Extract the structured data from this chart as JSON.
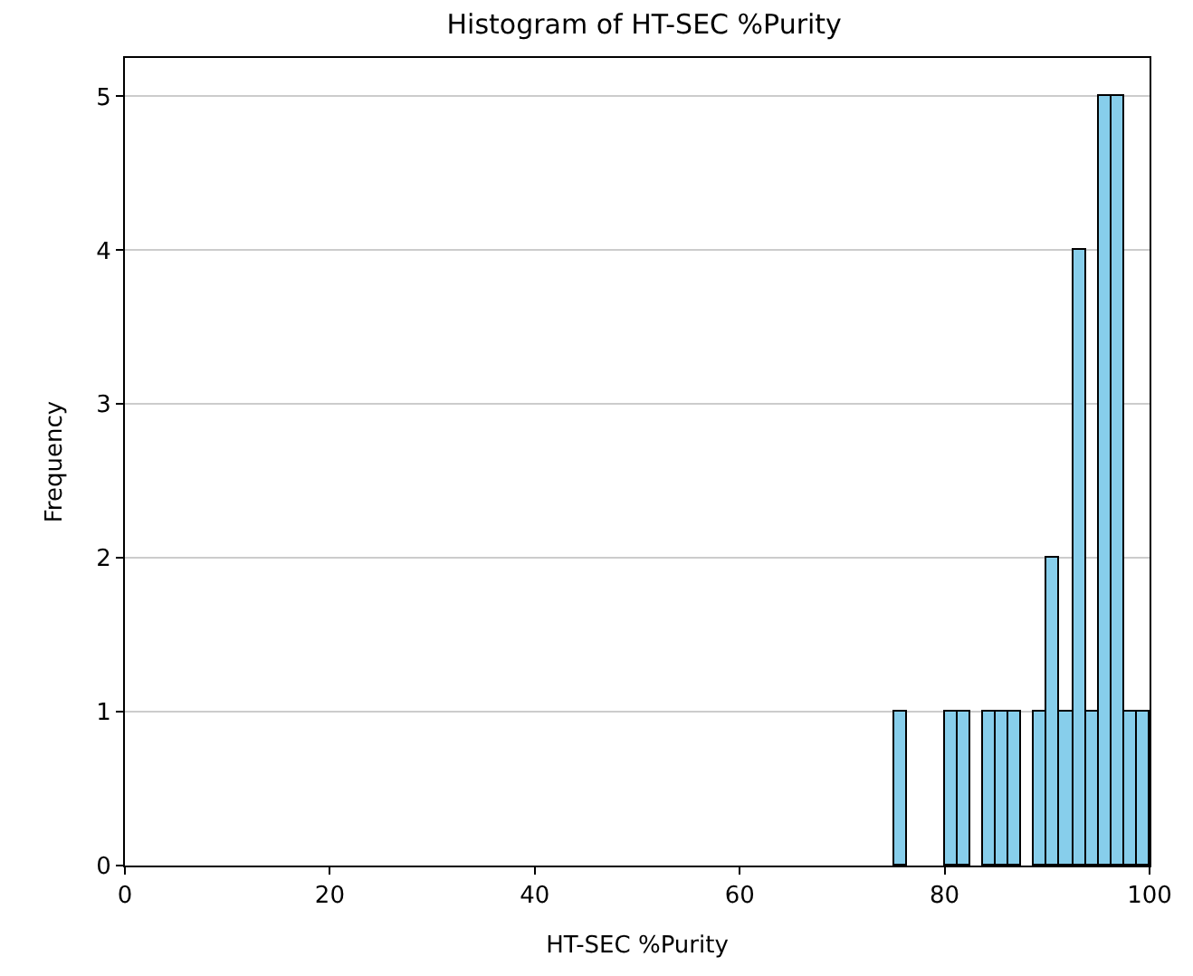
{
  "chart_data": {
    "type": "histogram",
    "title": "Histogram of HT-SEC %Purity",
    "xlabel": "HT-SEC %Purity",
    "ylabel": "Frequency",
    "bins": [
      75,
      76.25,
      77.5,
      78.75,
      80,
      81.25,
      82.5,
      83.75,
      85,
      86.25,
      87.5,
      88.75,
      90,
      91.25,
      92.5,
      93.75,
      95,
      96.25,
      97.5,
      98.75,
      100
    ],
    "values": [
      1,
      0,
      0,
      0,
      1,
      1,
      0,
      1,
      1,
      1,
      0,
      1,
      2,
      1,
      4,
      1,
      5,
      5,
      1,
      1
    ],
    "color": "#87ceeb",
    "xlim": [
      0,
      100
    ],
    "xticks": [
      0,
      20,
      40,
      60,
      80,
      100
    ],
    "ylim": [
      0,
      5.25
    ],
    "yticks": [
      0,
      1,
      2,
      3,
      4,
      5
    ],
    "grid": "y"
  }
}
